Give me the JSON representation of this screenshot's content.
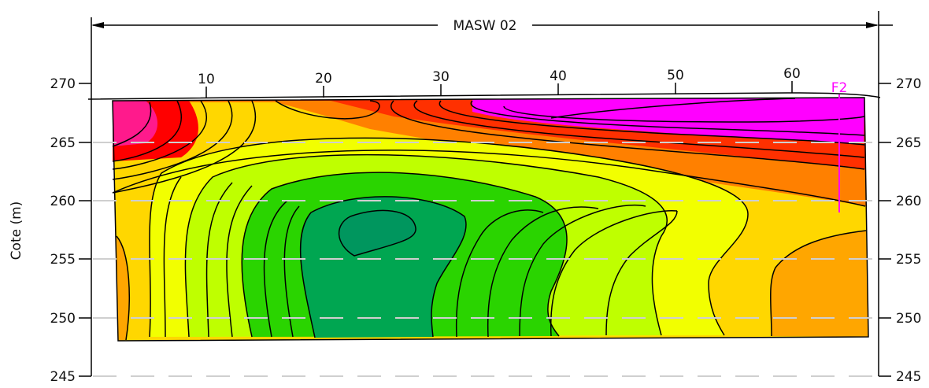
{
  "title": "MASW 02",
  "y_axis": {
    "label": "Cote (m)",
    "ticks": [
      "245",
      "250",
      "255",
      "260",
      "265",
      "270"
    ]
  },
  "distance_ticks": [
    "10",
    "20",
    "30",
    "40",
    "50",
    "60"
  ],
  "borehole_label": "F2",
  "colors": {
    "magenta": "#ff00ff",
    "pink": "#ff1a8c",
    "red": "#ff0000",
    "orange_red": "#ff4000",
    "orange": "#ff8000",
    "light_orange": "#ffa600",
    "gold": "#ffd700",
    "yellow": "#f2ff00",
    "lime": "#bfff00",
    "green": "#2ad400",
    "dark_green": "#00a651",
    "teal_green": "#00965e",
    "borehole": "#ff00ff"
  }
}
